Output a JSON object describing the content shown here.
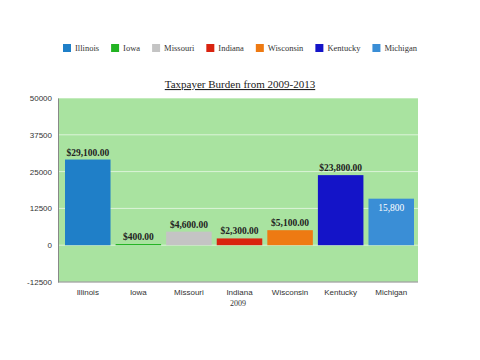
{
  "chart_data": {
    "type": "bar",
    "title": "Taxpayer Burden from 2009-2013",
    "x_label": "2009",
    "categories": [
      "Illinois",
      "Iowa",
      "Missouri",
      "Indiana",
      "Wisconsin",
      "Kentucky",
      "Michigan"
    ],
    "values": [
      29100,
      400,
      4600,
      2300,
      5100,
      23800,
      15800
    ],
    "value_labels": [
      "$29,100.00",
      "$400.00",
      "$4,600.00",
      "$2,300.00",
      "$5,100.00",
      "$23,800.00",
      "15,800"
    ],
    "colors": [
      "#1f7fc8",
      "#22b322",
      "#c4c4c4",
      "#d9230f",
      "#ee7a12",
      "#1414c8",
      "#3a8ed6"
    ],
    "ylim": [
      -12500,
      50000
    ],
    "yticks": [
      -12500,
      0,
      12500,
      25000,
      37500,
      50000
    ],
    "grid": true,
    "legend": "top",
    "data_labels": true
  }
}
